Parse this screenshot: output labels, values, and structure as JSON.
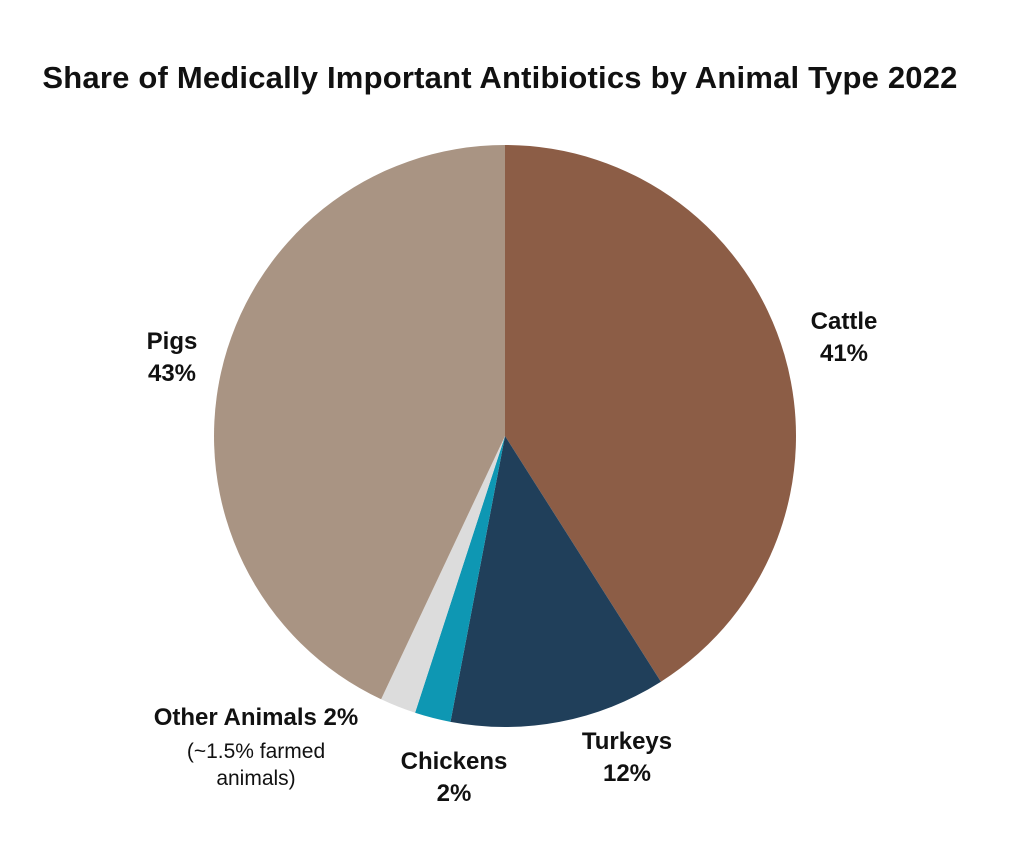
{
  "chart_data": {
    "type": "pie",
    "title": "Share of Medically Important Antibiotics by Animal Type 2022",
    "slices": [
      {
        "label": "Cattle",
        "value": 41,
        "display": "41%",
        "color": "#8c5d46"
      },
      {
        "label": "Turkeys",
        "value": 12,
        "display": "12%",
        "color": "#203f5a"
      },
      {
        "label": "Chickens",
        "value": 2,
        "display": "2%",
        "color": "#0e97b3"
      },
      {
        "label": "Other Animals",
        "value": 2,
        "display": "2%",
        "color": "#dcdcdc",
        "note": "(~1.5% farmed animals)"
      },
      {
        "label": "Pigs",
        "value": 43,
        "display": "43%",
        "color": "#a99483"
      }
    ]
  },
  "labels": {
    "cattle": {
      "name": "Cattle",
      "pct": "41%"
    },
    "turkeys": {
      "name": "Turkeys",
      "pct": "12%"
    },
    "chickens": {
      "name": "Chickens",
      "pct": "2%"
    },
    "other": {
      "name": "Other Animals 2%",
      "note_line1": "(~1.5% farmed",
      "note_line2": "animals)"
    },
    "pigs": {
      "name": "Pigs",
      "pct": "43%"
    }
  }
}
